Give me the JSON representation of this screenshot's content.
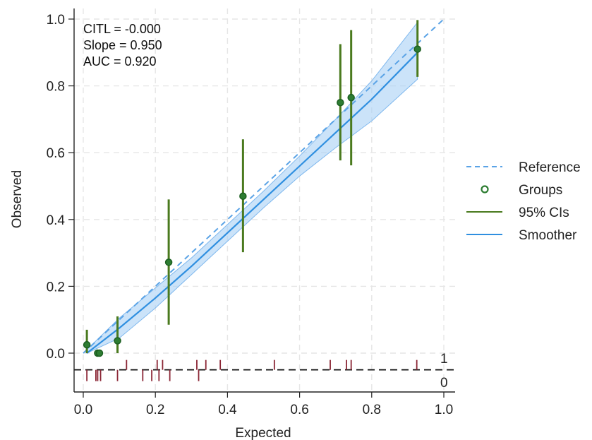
{
  "chart_data": {
    "type": "scatter",
    "title": "",
    "xlabel": "Expected",
    "ylabel": "Observed",
    "xlim": [
      0,
      1
    ],
    "ylim": [
      -0.1,
      1.0
    ],
    "xticks": [
      "0.0",
      "0.2",
      "0.4",
      "0.6",
      "0.8",
      "1.0"
    ],
    "yticks": [
      "0.0",
      "0.2",
      "0.4",
      "0.6",
      "0.8",
      "1.0"
    ],
    "grid": true,
    "legend_position": "right",
    "stats": [
      "CITL = -0.000",
      "Slope = 0.950",
      "AUC = 0.920"
    ],
    "rug_labels": [
      "1",
      "0"
    ],
    "rug_y": -0.05,
    "series": [
      {
        "name": "Reference",
        "kind": "dashed-line",
        "color": "#5aa3e6",
        "points": [
          [
            0,
            0
          ],
          [
            1,
            1
          ]
        ]
      },
      {
        "name": "Groups",
        "kind": "points",
        "color": "#2e7d32",
        "points": [
          [
            0.01,
            0.025
          ],
          [
            0.04,
            0.0
          ],
          [
            0.045,
            0.0
          ],
          [
            0.095,
            0.037
          ],
          [
            0.237,
            0.272
          ],
          [
            0.443,
            0.47
          ],
          [
            0.713,
            0.75
          ],
          [
            0.743,
            0.765
          ],
          [
            0.927,
            0.91
          ]
        ]
      },
      {
        "name": "95% CIs",
        "kind": "errorbars",
        "color": "#4a7a1e",
        "intervals": [
          [
            0.01,
            0.0,
            0.07
          ],
          [
            0.095,
            0.0,
            0.11
          ],
          [
            0.237,
            0.085,
            0.46
          ],
          [
            0.443,
            0.302,
            0.64
          ],
          [
            0.713,
            0.577,
            0.925
          ],
          [
            0.743,
            0.562,
            0.967
          ],
          [
            0.927,
            0.827,
            0.997
          ]
        ]
      },
      {
        "name": "Smoother",
        "kind": "line",
        "color": "#2f8fe0",
        "points": [
          [
            0.01,
            0.0
          ],
          [
            0.1,
            0.075
          ],
          [
            0.2,
            0.165
          ],
          [
            0.3,
            0.26
          ],
          [
            0.4,
            0.36
          ],
          [
            0.5,
            0.46
          ],
          [
            0.6,
            0.56
          ],
          [
            0.7,
            0.66
          ],
          [
            0.8,
            0.76
          ],
          [
            0.927,
            0.9
          ]
        ]
      }
    ],
    "confidence_band": {
      "color": "#a9d0f5",
      "x": [
        0.01,
        0.1,
        0.2,
        0.3,
        0.4,
        0.5,
        0.6,
        0.7,
        0.8,
        0.927
      ],
      "lower": [
        0.0,
        0.045,
        0.135,
        0.235,
        0.335,
        0.435,
        0.53,
        0.615,
        0.695,
        0.82
      ],
      "upper": [
        0.01,
        0.105,
        0.195,
        0.285,
        0.385,
        0.485,
        0.59,
        0.7,
        0.815,
        0.99
      ]
    },
    "rug_events_1": [
      0.12,
      0.205,
      0.22,
      0.315,
      0.34,
      0.38,
      0.53,
      0.685,
      0.73,
      0.743,
      0.925
    ],
    "rug_events_0": [
      0.01,
      0.035,
      0.04,
      0.048,
      0.095,
      0.165,
      0.19,
      0.21,
      0.24,
      0.32
    ],
    "rug_color": "#8b2635"
  }
}
